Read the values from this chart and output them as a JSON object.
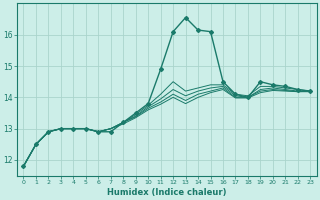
{
  "xlabel": "Humidex (Indice chaleur)",
  "ylabel": "",
  "bg_color": "#cceee8",
  "grid_color": "#aad4cc",
  "line_color": "#1a7a6a",
  "xlim": [
    -0.5,
    23.5
  ],
  "ylim": [
    11.5,
    17.0
  ],
  "x": [
    0,
    1,
    2,
    3,
    4,
    5,
    6,
    7,
    8,
    9,
    10,
    11,
    12,
    13,
    14,
    15,
    16,
    17,
    18,
    19,
    20,
    21,
    22,
    23
  ],
  "series": [
    [
      11.8,
      12.5,
      12.9,
      13.0,
      13.0,
      13.0,
      12.9,
      12.9,
      13.2,
      13.5,
      13.8,
      14.9,
      16.1,
      16.55,
      16.15,
      16.1,
      14.5,
      14.1,
      14.0,
      14.5,
      14.4,
      14.35,
      14.25,
      14.2
    ],
    [
      11.8,
      12.5,
      12.9,
      13.0,
      13.0,
      13.0,
      12.9,
      13.0,
      13.2,
      13.45,
      13.75,
      14.1,
      14.5,
      14.2,
      14.3,
      14.4,
      14.4,
      14.1,
      14.05,
      14.35,
      14.35,
      14.3,
      14.25,
      14.2
    ],
    [
      11.8,
      12.5,
      12.9,
      13.0,
      13.0,
      13.0,
      12.9,
      13.0,
      13.2,
      13.4,
      13.7,
      13.95,
      14.25,
      14.05,
      14.2,
      14.3,
      14.35,
      14.05,
      14.0,
      14.25,
      14.3,
      14.25,
      14.2,
      14.2
    ],
    [
      11.8,
      12.5,
      12.9,
      13.0,
      13.0,
      13.0,
      12.9,
      13.0,
      13.2,
      13.38,
      13.65,
      13.85,
      14.1,
      13.9,
      14.1,
      14.2,
      14.3,
      14.0,
      14.0,
      14.2,
      14.25,
      14.22,
      14.18,
      14.2
    ],
    [
      11.8,
      12.5,
      12.9,
      13.0,
      13.0,
      13.0,
      12.9,
      13.0,
      13.15,
      13.35,
      13.6,
      13.78,
      14.0,
      13.8,
      14.0,
      14.15,
      14.25,
      13.98,
      13.98,
      14.15,
      14.22,
      14.2,
      14.18,
      14.18
    ]
  ],
  "yticks": [
    12,
    13,
    14,
    15,
    16
  ],
  "xticks": [
    0,
    1,
    2,
    3,
    4,
    5,
    6,
    7,
    8,
    9,
    10,
    11,
    12,
    13,
    14,
    15,
    16,
    17,
    18,
    19,
    20,
    21,
    22,
    23
  ]
}
